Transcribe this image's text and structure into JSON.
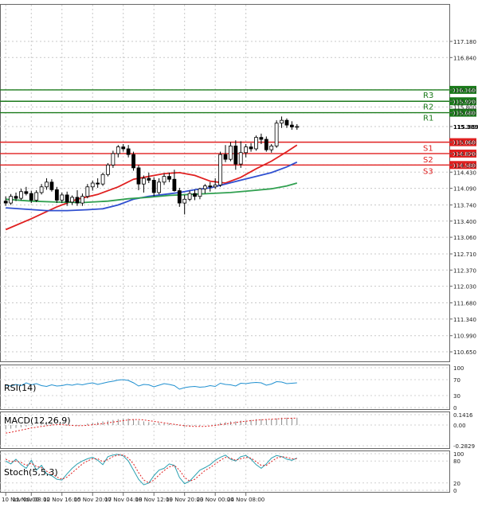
{
  "chart_data": {
    "type": "candlestick",
    "main": {
      "ylim": [
        110.45,
        117.95
      ],
      "price_ticks": [
        "117.180",
        "116.840",
        "116.160",
        "115.920",
        "115.800",
        "115.680",
        "115.389",
        "115.060",
        "114.820",
        "114.580",
        "114.430",
        "114.090",
        "113.740",
        "113.400",
        "113.060",
        "112.710",
        "112.370",
        "112.030",
        "111.680",
        "111.340",
        "110.990",
        "110.650"
      ],
      "price_values": [
        117.18,
        116.84,
        116.16,
        115.92,
        115.8,
        115.68,
        115.389,
        115.06,
        114.82,
        114.58,
        114.43,
        114.09,
        113.74,
        113.4,
        113.06,
        112.71,
        112.37,
        112.03,
        111.68,
        111.34,
        110.99,
        110.65
      ],
      "current_price": "115.389",
      "levels": [
        {
          "label": "R3",
          "value": 116.16,
          "value_text": "116.160",
          "color": "#1b7a1b"
        },
        {
          "label": "R2",
          "value": 115.92,
          "value_text": "115.920",
          "color": "#1b7a1b"
        },
        {
          "label": "R1",
          "value": 115.68,
          "value_text": "115.680",
          "color": "#1b7a1b"
        },
        {
          "label": "S1",
          "value": 115.06,
          "value_text": "115.060",
          "color": "#e02020"
        },
        {
          "label": "S2",
          "value": 114.82,
          "value_text": "114.820",
          "color": "#e02020"
        },
        {
          "label": "S3",
          "value": 114.58,
          "value_text": "114.580",
          "color": "#e02020"
        }
      ],
      "candles": [
        [
          113.82,
          113.92,
          113.72,
          113.78
        ],
        [
          113.78,
          113.97,
          113.74,
          113.92
        ],
        [
          113.92,
          114.0,
          113.82,
          113.88
        ],
        [
          113.88,
          114.08,
          113.84,
          114.02
        ],
        [
          114.02,
          114.12,
          113.94,
          113.98
        ],
        [
          113.98,
          114.04,
          113.78,
          113.84
        ],
        [
          113.84,
          114.05,
          113.8,
          114.0
        ],
        [
          114.0,
          114.18,
          113.96,
          114.12
        ],
        [
          114.12,
          114.3,
          114.06,
          114.22
        ],
        [
          114.22,
          114.28,
          114.02,
          114.06
        ],
        [
          114.06,
          114.12,
          113.78,
          113.84
        ],
        [
          113.84,
          114.0,
          113.78,
          113.95
        ],
        [
          113.95,
          114.02,
          113.72,
          113.8
        ],
        [
          113.8,
          113.94,
          113.74,
          113.9
        ],
        [
          113.9,
          114.05,
          113.72,
          113.78
        ],
        [
          113.78,
          113.98,
          113.72,
          113.92
        ],
        [
          113.92,
          114.18,
          113.88,
          114.12
        ],
        [
          114.12,
          114.25,
          114.04,
          114.2
        ],
        [
          114.2,
          114.3,
          114.1,
          114.18
        ],
        [
          114.18,
          114.42,
          114.14,
          114.38
        ],
        [
          114.38,
          114.62,
          114.34,
          114.58
        ],
        [
          114.58,
          114.88,
          114.52,
          114.82
        ],
        [
          114.82,
          115.0,
          114.74,
          114.96
        ],
        [
          114.96,
          115.02,
          114.86,
          114.92
        ],
        [
          114.92,
          115.0,
          114.74,
          114.8
        ],
        [
          114.8,
          114.86,
          114.46,
          114.52
        ],
        [
          114.52,
          114.58,
          114.05,
          114.18
        ],
        [
          114.18,
          114.36,
          114.0,
          114.3
        ],
        [
          114.3,
          114.42,
          114.2,
          114.26
        ],
        [
          114.26,
          114.32,
          113.92,
          114.0
        ],
        [
          114.0,
          114.3,
          113.96,
          114.22
        ],
        [
          114.22,
          114.4,
          114.16,
          114.34
        ],
        [
          114.34,
          114.42,
          114.22,
          114.28
        ],
        [
          114.28,
          114.48,
          114.02,
          114.04
        ],
        [
          114.04,
          114.1,
          113.7,
          113.78
        ],
        [
          113.78,
          113.95,
          113.54,
          113.86
        ],
        [
          113.86,
          114.04,
          113.82,
          113.98
        ],
        [
          113.98,
          114.06,
          113.84,
          113.92
        ],
        [
          113.92,
          114.1,
          113.86,
          114.08
        ],
        [
          114.08,
          114.18,
          113.98,
          114.14
        ],
        [
          114.14,
          114.22,
          114.02,
          114.12
        ],
        [
          114.12,
          114.3,
          114.08,
          114.16
        ],
        [
          114.16,
          114.86,
          114.12,
          114.8
        ],
        [
          114.8,
          115.0,
          114.64,
          114.7
        ],
        [
          114.7,
          115.06,
          114.66,
          114.98
        ],
        [
          114.98,
          115.1,
          114.48,
          114.6
        ],
        [
          114.6,
          115.08,
          114.52,
          114.84
        ],
        [
          114.84,
          115.02,
          114.74,
          114.96
        ],
        [
          114.96,
          115.04,
          114.86,
          114.92
        ],
        [
          114.92,
          115.2,
          114.88,
          115.16
        ],
        [
          115.16,
          115.24,
          115.02,
          115.12
        ],
        [
          115.12,
          115.18,
          114.86,
          114.9
        ],
        [
          114.9,
          115.02,
          114.84,
          114.98
        ],
        [
          114.98,
          115.52,
          114.94,
          115.46
        ],
        [
          115.46,
          115.6,
          115.36,
          115.52
        ],
        [
          115.52,
          115.56,
          115.36,
          115.42
        ],
        [
          115.42,
          115.5,
          115.32,
          115.38
        ],
        [
          115.38,
          115.44,
          115.32,
          115.39
        ]
      ],
      "moving_averages": [
        {
          "name": "ma-red",
          "color": "#e02020",
          "points": [
            [
              0,
              113.22
            ],
            [
              5,
              113.45
            ],
            [
              10,
              113.7
            ],
            [
              14,
              113.86
            ],
            [
              18,
              113.96
            ],
            [
              22,
              114.12
            ],
            [
              25,
              114.28
            ],
            [
              28,
              114.34
            ],
            [
              31,
              114.4
            ],
            [
              34,
              114.42
            ],
            [
              37,
              114.36
            ],
            [
              40,
              114.24
            ],
            [
              43,
              114.2
            ],
            [
              46,
              114.32
            ],
            [
              49,
              114.5
            ],
            [
              52,
              114.66
            ],
            [
              55,
              114.86
            ],
            [
              57,
              115.0
            ]
          ]
        },
        {
          "name": "ma-blue",
          "color": "#3050d0",
          "points": [
            [
              0,
              113.68
            ],
            [
              4,
              113.65
            ],
            [
              8,
              113.62
            ],
            [
              12,
              113.62
            ],
            [
              16,
              113.64
            ],
            [
              19,
              113.66
            ],
            [
              22,
              113.74
            ],
            [
              25,
              113.86
            ],
            [
              28,
              113.92
            ],
            [
              31,
              113.96
            ],
            [
              34,
              114.0
            ],
            [
              37,
              114.06
            ],
            [
              40,
              114.1
            ],
            [
              43,
              114.18
            ],
            [
              46,
              114.26
            ],
            [
              49,
              114.34
            ],
            [
              52,
              114.42
            ],
            [
              55,
              114.54
            ],
            [
              57,
              114.64
            ]
          ]
        },
        {
          "name": "ma-green",
          "color": "#30a050",
          "points": [
            [
              0,
              113.86
            ],
            [
              5,
              113.82
            ],
            [
              10,
              113.8
            ],
            [
              15,
              113.79
            ],
            [
              20,
              113.82
            ],
            [
              24,
              113.87
            ],
            [
              28,
              113.9
            ],
            [
              32,
              113.94
            ],
            [
              36,
              113.96
            ],
            [
              40,
              113.98
            ],
            [
              44,
              114.0
            ],
            [
              48,
              114.04
            ],
            [
              52,
              114.08
            ],
            [
              55,
              114.14
            ],
            [
              57,
              114.2
            ]
          ]
        }
      ]
    },
    "rsi": {
      "label": "RSI(14)",
      "ylim": [
        0,
        100
      ],
      "ticks": [
        "100",
        "70",
        "30",
        "0"
      ],
      "tick_values": [
        100,
        70,
        30,
        0
      ],
      "values": [
        56,
        54,
        58,
        55,
        62,
        57,
        60,
        55,
        53,
        57,
        54,
        55,
        58,
        56,
        59,
        57,
        60,
        62,
        58,
        61,
        64,
        66,
        69,
        70,
        68,
        62,
        54,
        58,
        57,
        52,
        56,
        60,
        58,
        55,
        46,
        50,
        52,
        53,
        51,
        52,
        55,
        53,
        61,
        58,
        57,
        54,
        61,
        60,
        62,
        63,
        62,
        56,
        59,
        65,
        64,
        60,
        61,
        62
      ]
    },
    "macd": {
      "label": "MACD(12,26,9)",
      "ylim": [
        -0.2829,
        0.1416
      ],
      "ticks": [
        "0.1416",
        "0.00",
        "-0.2829"
      ],
      "tick_values": [
        0.1416,
        0.0,
        -0.2829
      ],
      "histogram": [
        -0.06,
        -0.05,
        -0.04,
        -0.03,
        -0.02,
        -0.01,
        0.0,
        0.02,
        0.03,
        0.02,
        0.01,
        0.0,
        -0.01,
        -0.01,
        -0.01,
        0.0,
        0.02,
        0.03,
        0.04,
        0.05,
        0.06,
        0.07,
        0.08,
        0.09,
        0.09,
        0.08,
        0.06,
        0.05,
        0.04,
        0.03,
        0.03,
        0.02,
        0.02,
        0.01,
        -0.01,
        -0.02,
        -0.02,
        -0.01,
        -0.01,
        0.0,
        0.0,
        0.01,
        0.03,
        0.04,
        0.05,
        0.05,
        0.06,
        0.06,
        0.07,
        0.08,
        0.08,
        0.08,
        0.08,
        0.09,
        0.1,
        0.1,
        0.1,
        0.1
      ],
      "signal": [
        -0.11,
        -0.1,
        -0.085,
        -0.07,
        -0.055,
        -0.04,
        -0.03,
        -0.02,
        -0.01,
        0.0,
        0.005,
        0.005,
        0.0,
        -0.005,
        -0.01,
        -0.008,
        -0.004,
        0.004,
        0.012,
        0.02,
        0.03,
        0.04,
        0.05,
        0.06,
        0.07,
        0.075,
        0.075,
        0.07,
        0.06,
        0.05,
        0.04,
        0.03,
        0.02,
        0.01,
        0.0,
        -0.01,
        -0.015,
        -0.02,
        -0.02,
        -0.018,
        -0.012,
        -0.005,
        0.005,
        0.015,
        0.025,
        0.035,
        0.045,
        0.052,
        0.06,
        0.066,
        0.072,
        0.076,
        0.08,
        0.084,
        0.088,
        0.091,
        0.093,
        0.095
      ]
    },
    "stoch": {
      "label": "Stoch(5,5,3)",
      "ylim": [
        0,
        100
      ],
      "ticks": [
        "100",
        "80",
        "20",
        "0"
      ],
      "tick_values": [
        100,
        80,
        20,
        0
      ],
      "main": [
        80,
        72,
        85,
        70,
        60,
        82,
        55,
        68,
        45,
        40,
        30,
        28,
        45,
        60,
        72,
        80,
        86,
        90,
        82,
        70,
        92,
        96,
        98,
        94,
        80,
        55,
        30,
        15,
        20,
        40,
        55,
        60,
        72,
        68,
        35,
        18,
        25,
        40,
        55,
        62,
        70,
        82,
        90,
        96,
        85,
        80,
        92,
        95,
        85,
        70,
        60,
        72,
        88,
        95,
        92,
        85,
        82,
        88
      ],
      "signal": [
        85,
        78,
        80,
        76,
        68,
        74,
        65,
        62,
        52,
        46,
        36,
        30,
        36,
        48,
        60,
        72,
        80,
        86,
        86,
        78,
        84,
        92,
        96,
        96,
        88,
        72,
        48,
        28,
        20,
        28,
        42,
        54,
        64,
        68,
        55,
        35,
        25,
        30,
        42,
        54,
        62,
        72,
        82,
        90,
        88,
        82,
        86,
        90,
        88,
        78,
        68,
        68,
        78,
        88,
        92,
        90,
        86,
        86
      ]
    },
    "x_labels": [
      "10 Nov 00:00",
      "11 Nov 08:00",
      "12 Nov 16:00",
      "15 Nov 20:00",
      "17 Nov 04:00",
      "18 Nov 12:00",
      "19 Nov 20:00",
      "23 Nov 00:00",
      "24 Nov 08:00"
    ],
    "x_label_index": [
      0,
      5,
      11,
      17,
      23,
      29,
      35,
      41,
      47
    ]
  }
}
